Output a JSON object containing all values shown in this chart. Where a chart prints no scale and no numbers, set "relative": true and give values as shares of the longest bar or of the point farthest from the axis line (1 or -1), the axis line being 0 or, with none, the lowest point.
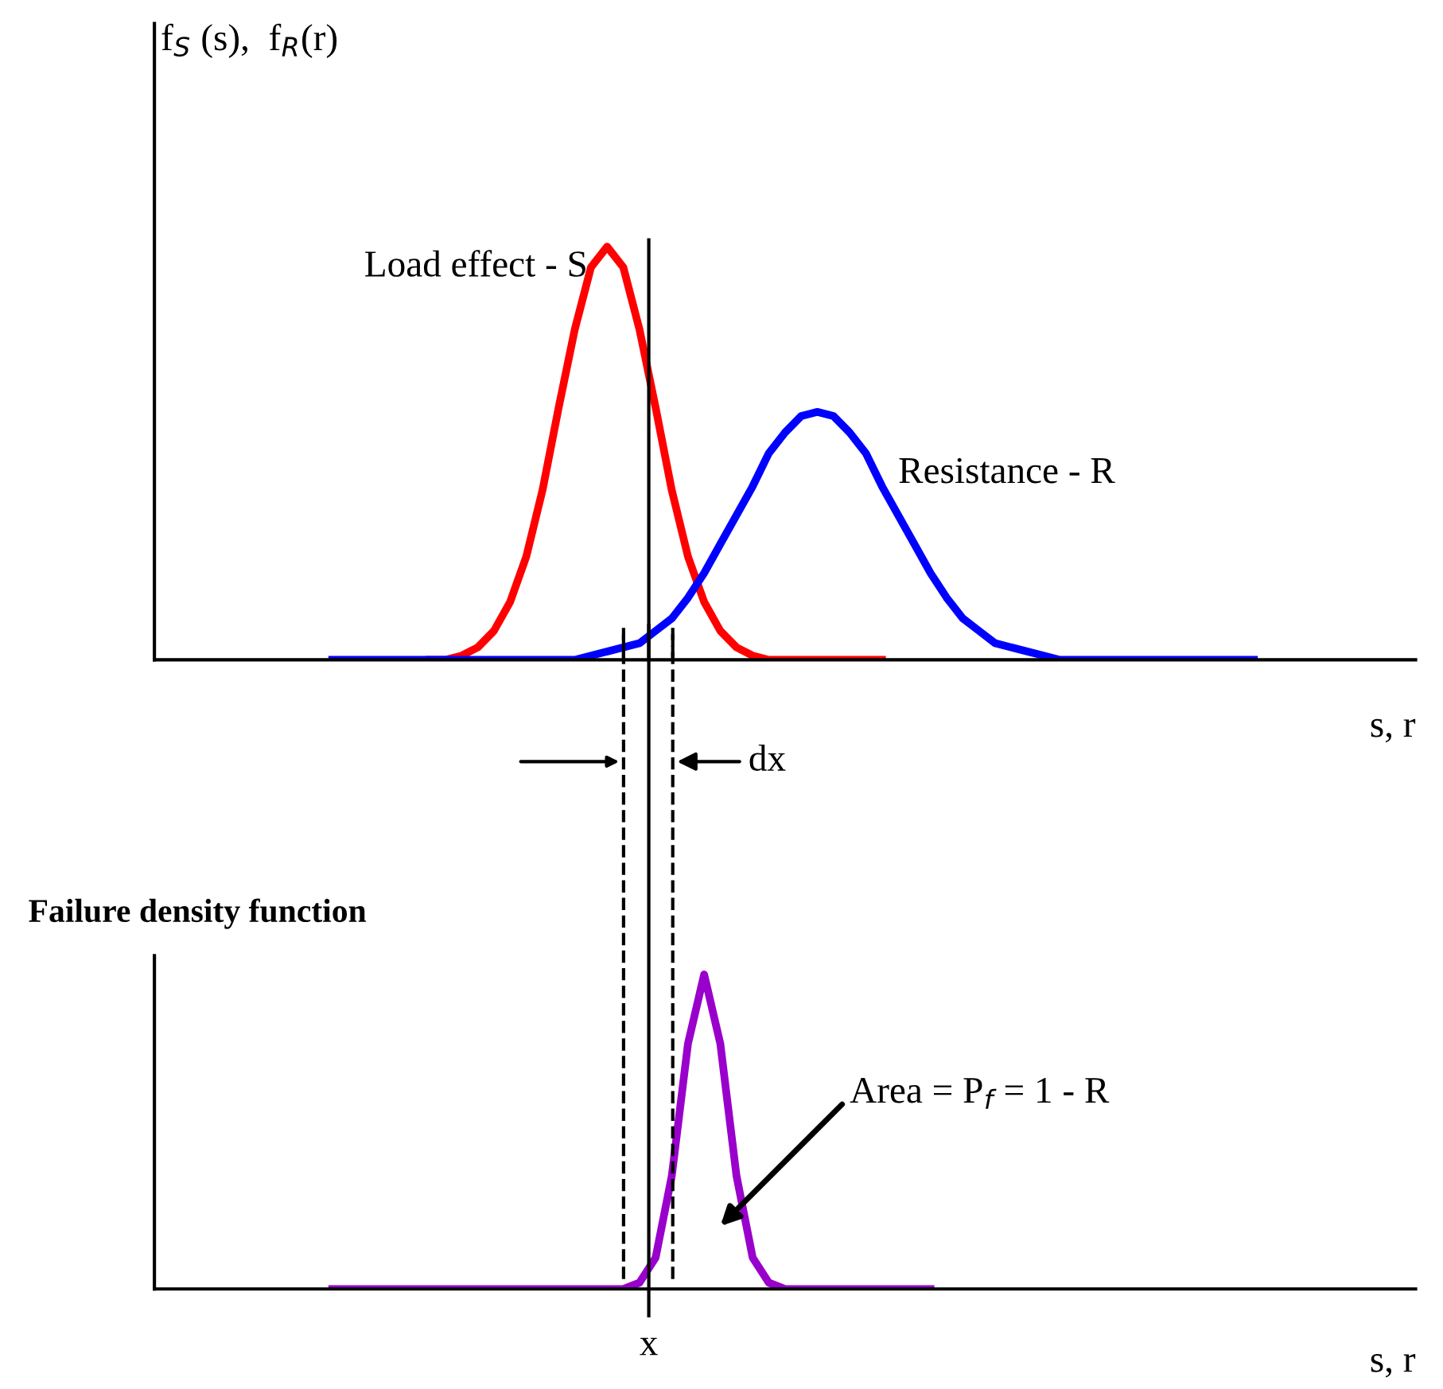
{
  "chart_data": [
    {
      "type": "line",
      "relative": true,
      "legend": false,
      "marker": "none",
      "line_style": "solid",
      "tick_labels": false,
      "ylabel": "f$_{S}$ (s),  f$_{R}$(r)",
      "xlabel": "s, r",
      "categories": [
        null,
        null,
        null,
        null,
        null,
        null,
        null,
        null,
        null,
        null,
        null,
        null,
        null,
        null,
        null,
        null,
        null,
        null,
        null,
        null,
        null,
        null,
        null,
        null,
        null,
        null,
        null,
        null,
        null,
        null,
        null,
        null,
        null,
        null,
        null,
        null,
        null,
        null,
        null,
        null,
        null,
        null,
        null,
        null,
        null,
        null,
        null,
        null,
        null,
        null,
        null,
        null,
        null,
        null,
        null,
        null,
        null,
        null,
        null,
        null,
        null,
        null,
        null,
        null,
        null,
        null,
        null,
        null,
        null,
        null,
        null,
        null,
        null,
        null,
        null,
        null,
        null,
        null,
        null
      ],
      "series": [
        {
          "name": "Load effect - S",
          "color": "#ff0000",
          "values": [
            null,
            null,
            null,
            null,
            null,
            null,
            null,
            null,
            null,
            null,
            null,
            null,
            null,
            null,
            null,
            null,
            null,
            0,
            0,
            0.01,
            0.03,
            0.07,
            0.14,
            0.25,
            0.41,
            0.61,
            0.8,
            0.95,
            1,
            0.95,
            0.8,
            0.61,
            0.41,
            0.25,
            0.14,
            0.07,
            0.03,
            0.01,
            0,
            0,
            0,
            0,
            0,
            0,
            0,
            0,
            null,
            null,
            null,
            null,
            null,
            null,
            null,
            null,
            null,
            null,
            null,
            null,
            null,
            null,
            null,
            null,
            null,
            null,
            null,
            null,
            null,
            null,
            null,
            null,
            null,
            null,
            null,
            null,
            null,
            null,
            null,
            null,
            null
          ]
        },
        {
          "name": "Resistance - R",
          "color": "#0000ff",
          "values": [
            null,
            null,
            null,
            null,
            null,
            null,
            null,
            null,
            null,
            null,
            null,
            0,
            0,
            0,
            0,
            0,
            0,
            0,
            0,
            0,
            0,
            0,
            0,
            0,
            0,
            0,
            0,
            0.01,
            0.02,
            0.03,
            0.04,
            0.07,
            0.1,
            0.15,
            0.21,
            0.28,
            0.35,
            0.42,
            0.5,
            0.55,
            0.59,
            0.6,
            0.59,
            0.55,
            0.5,
            0.42,
            0.35,
            0.28,
            0.21,
            0.15,
            0.1,
            0.07,
            0.04,
            0.03,
            0.02,
            0.01,
            0,
            0,
            0,
            0,
            0,
            0,
            0,
            0,
            0,
            0,
            0,
            0,
            0,
            null,
            null,
            null,
            null,
            null,
            null,
            null,
            null,
            null,
            null
          ]
        }
      ],
      "annotations": [
        "dx"
      ]
    },
    {
      "type": "line",
      "relative": true,
      "legend": false,
      "marker": "none",
      "line_style": "solid",
      "tick_labels": false,
      "ylabel": "Failure density function",
      "xlabel": "s, r",
      "categories": [
        null,
        null,
        null,
        null,
        null,
        null,
        null,
        null,
        null,
        null,
        null,
        null,
        null,
        null,
        null,
        null,
        null,
        null,
        null,
        null,
        null,
        null,
        null,
        null,
        null,
        null,
        null,
        null,
        null,
        null,
        null,
        null,
        null,
        null,
        null,
        null,
        null,
        null,
        null,
        null,
        null,
        null,
        null,
        null,
        null,
        null,
        null,
        null,
        null,
        null,
        null,
        null,
        null,
        null,
        null,
        null,
        null,
        null,
        null,
        null,
        null,
        null,
        null,
        null,
        null,
        null,
        null,
        null,
        null,
        null,
        null,
        null,
        null,
        null,
        null,
        null,
        null,
        null,
        null
      ],
      "series": [
        {
          "color": "#9900cc",
          "values": [
            null,
            null,
            null,
            null,
            null,
            null,
            null,
            null,
            null,
            null,
            null,
            0,
            0,
            0,
            0,
            0,
            0,
            0,
            0,
            0,
            0,
            0,
            0,
            0,
            0,
            0,
            0,
            0,
            0,
            0,
            0.02,
            0.1,
            0.36,
            0.78,
            1,
            0.78,
            0.36,
            0.1,
            0.02,
            0,
            0,
            0,
            0,
            0,
            0,
            0,
            0,
            0,
            0,
            null,
            null,
            null,
            null,
            null,
            null,
            null,
            null,
            null,
            null,
            null,
            null,
            null,
            null,
            null,
            null,
            null,
            null,
            null,
            null,
            null,
            null,
            null,
            null,
            null,
            null,
            null,
            null,
            null,
            null
          ]
        }
      ],
      "annotations": [
        "Area = P$_{f}$ = 1 - R",
        "x"
      ]
    }
  ]
}
